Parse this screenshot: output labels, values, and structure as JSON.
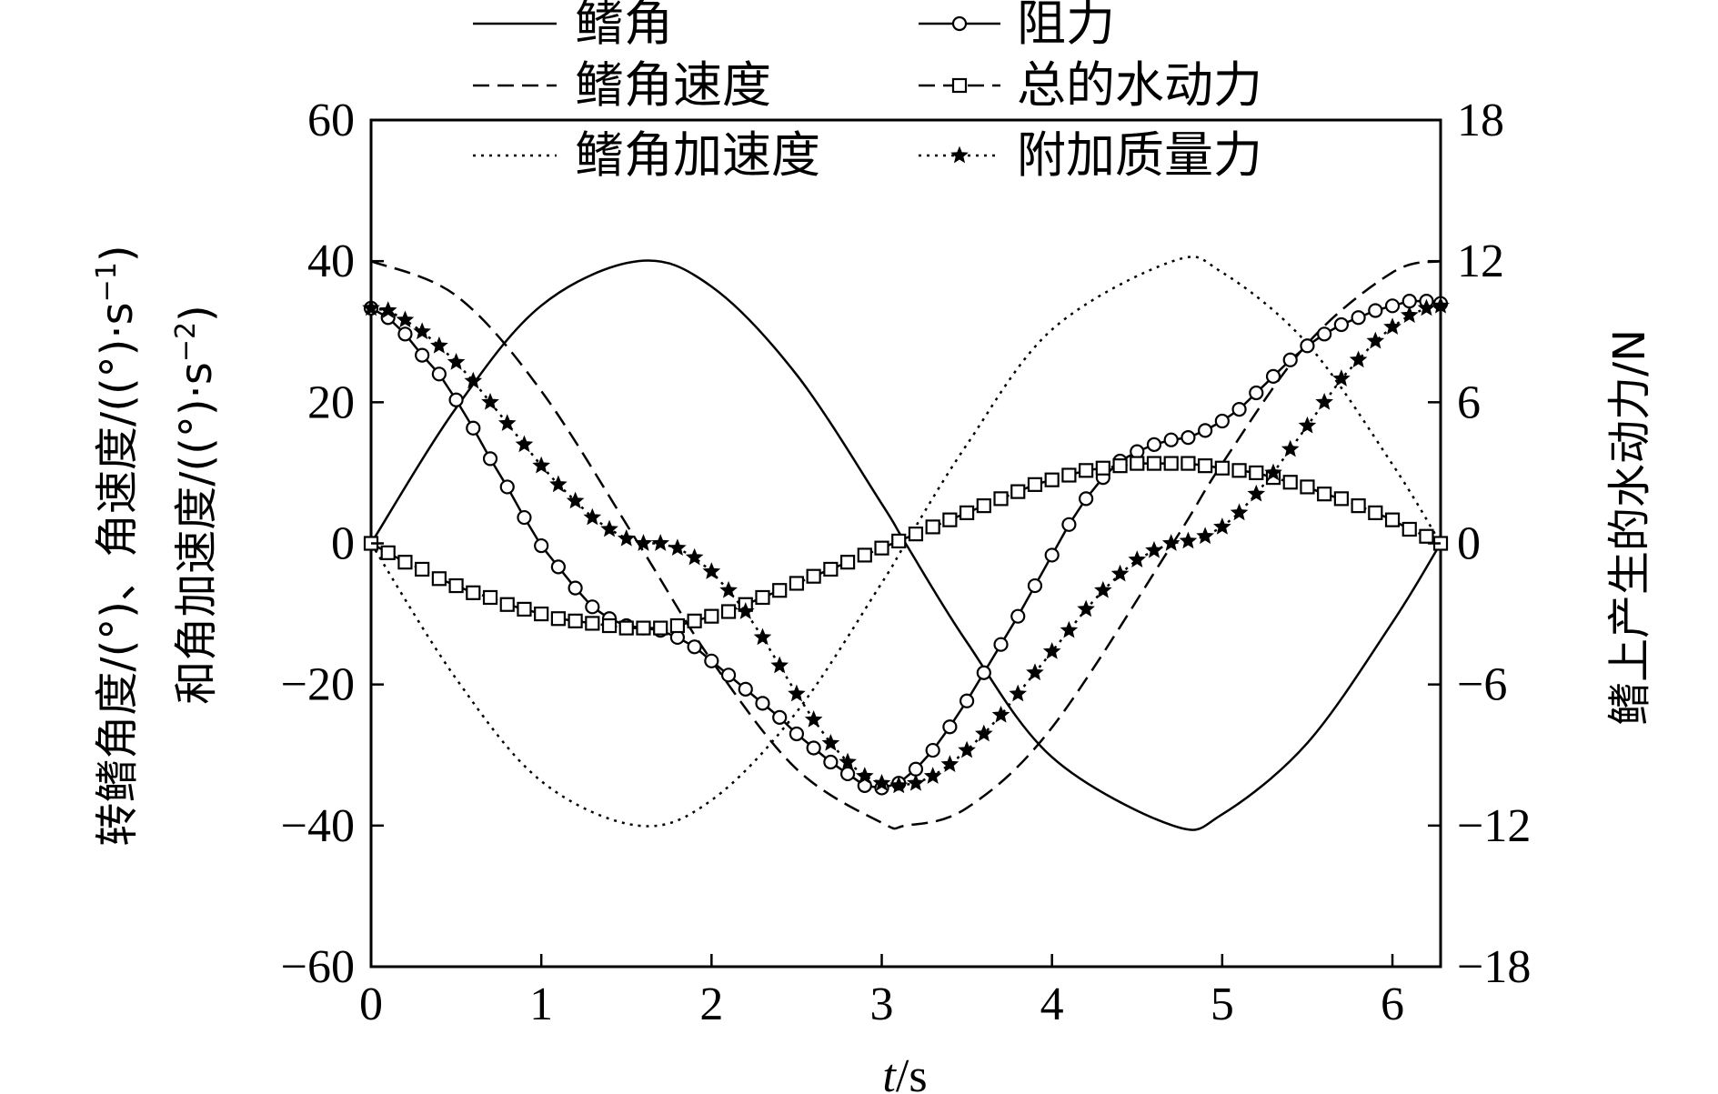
{
  "chart_data": {
    "type": "line",
    "x_label_italic": "t",
    "x_label_unit": "/s",
    "y_left_label_line1": "转鳍角度/(°)、角速度/((°)·s",
    "y_left_label_line1_sup": "−1",
    "y_left_label_line1_tail": ")",
    "y_left_label_line2": "和角加速度/((°)·s",
    "y_left_label_line2_sup": "−2",
    "y_left_label_line2_tail": ")",
    "y_right_label": "鳍上产生的水动力/N",
    "xlim": [
      0,
      6.283
    ],
    "ylim_left": [
      -60,
      60
    ],
    "ylim_right": [
      -18,
      18
    ],
    "x_ticks": [
      0,
      1,
      2,
      3,
      4,
      5,
      6
    ],
    "x_tick_labels": [
      "0",
      "1",
      "2",
      "3",
      "4",
      "5",
      "6"
    ],
    "y_left_ticks": [
      -60,
      -40,
      -20,
      0,
      20,
      40,
      60
    ],
    "y_left_tick_labels": [
      "−60",
      "−40",
      "−20",
      "0",
      "20",
      "40",
      "60"
    ],
    "y_right_ticks": [
      -18,
      -12,
      -6,
      0,
      6,
      12,
      18
    ],
    "y_right_tick_labels": [
      "−18",
      "−12",
      "−6",
      "0",
      "6",
      "12",
      "18"
    ],
    "grid": false,
    "legend_position": "top",
    "series": [
      {
        "name": "鳍角",
        "axis": "left",
        "style": "solid",
        "marker": "none",
        "x": [
          0,
          0.5,
          1.0,
          1.57,
          2.0,
          2.5,
          3.0,
          3.14,
          3.5,
          4.0,
          4.71,
          5.0,
          5.5,
          6.0,
          6.283
        ],
        "y": [
          0,
          19.2,
          33.7,
          40,
          36.4,
          23.9,
          5.6,
          0,
          -14.0,
          -30.3,
          -40,
          -38.4,
          -28.3,
          -11.2,
          0
        ]
      },
      {
        "name": "鳍角速度",
        "axis": "left",
        "style": "dashed",
        "marker": "none",
        "x": [
          0,
          0.5,
          1.0,
          1.57,
          2.0,
          2.5,
          3.0,
          3.14,
          3.5,
          4.0,
          4.71,
          5.0,
          5.5,
          6.0,
          6.283
        ],
        "y": [
          40,
          35.1,
          21.6,
          0,
          -16.6,
          -32.0,
          -39.6,
          -40,
          -37.5,
          -26.1,
          0,
          11.3,
          28.3,
          38.4,
          40
        ]
      },
      {
        "name": "鳍角加速度",
        "axis": "left",
        "style": "dotted",
        "marker": "none",
        "x": [
          0,
          0.5,
          1.0,
          1.57,
          2.0,
          2.5,
          3.0,
          3.14,
          3.5,
          4.0,
          4.71,
          5.0,
          5.5,
          6.0,
          6.283
        ],
        "y": [
          0,
          -19.2,
          -33.7,
          -40,
          -36.4,
          -23.9,
          -5.6,
          0,
          14.0,
          30.3,
          40,
          38.4,
          28.3,
          11.2,
          0
        ]
      },
      {
        "name": "阻力",
        "axis": "right",
        "style": "solid",
        "marker": "circle",
        "x": [
          0,
          0.1,
          0.2,
          0.3,
          0.4,
          0.5,
          0.6,
          0.7,
          0.8,
          0.9,
          1.0,
          1.1,
          1.2,
          1.3,
          1.4,
          1.5,
          1.6,
          1.7,
          1.8,
          1.9,
          2.0,
          2.1,
          2.2,
          2.3,
          2.4,
          2.5,
          2.6,
          2.7,
          2.8,
          2.9,
          3.0,
          3.1,
          3.2,
          3.3,
          3.4,
          3.5,
          3.6,
          3.7,
          3.8,
          3.9,
          4.0,
          4.1,
          4.2,
          4.3,
          4.4,
          4.5,
          4.6,
          4.7,
          4.8,
          4.9,
          5.0,
          5.1,
          5.2,
          5.3,
          5.4,
          5.5,
          5.6,
          5.7,
          5.8,
          5.9,
          6.0,
          6.1,
          6.2,
          6.283
        ],
        "y": [
          10.0,
          9.6,
          8.9,
          8.0,
          7.2,
          6.1,
          4.9,
          3.6,
          2.4,
          1.1,
          -0.1,
          -1.0,
          -1.9,
          -2.7,
          -3.2,
          -3.5,
          -3.6,
          -3.7,
          -4.0,
          -4.4,
          -5.0,
          -5.6,
          -6.2,
          -6.8,
          -7.4,
          -8.1,
          -8.7,
          -9.3,
          -9.8,
          -10.3,
          -10.4,
          -10.2,
          -9.6,
          -8.8,
          -7.8,
          -6.7,
          -5.5,
          -4.3,
          -3.1,
          -1.8,
          -0.5,
          0.8,
          1.9,
          2.8,
          3.5,
          3.9,
          4.2,
          4.4,
          4.5,
          4.8,
          5.2,
          5.7,
          6.4,
          7.1,
          7.8,
          8.4,
          8.9,
          9.3,
          9.6,
          9.9,
          10.1,
          10.3,
          10.3,
          10.2
        ]
      },
      {
        "name": "总的水动力",
        "axis": "right",
        "style": "dashed",
        "marker": "square",
        "x": [
          0,
          0.1,
          0.2,
          0.3,
          0.4,
          0.5,
          0.6,
          0.7,
          0.8,
          0.9,
          1.0,
          1.1,
          1.2,
          1.3,
          1.4,
          1.5,
          1.6,
          1.7,
          1.8,
          1.9,
          2.0,
          2.1,
          2.2,
          2.3,
          2.4,
          2.5,
          2.6,
          2.7,
          2.8,
          2.9,
          3.0,
          3.1,
          3.2,
          3.3,
          3.4,
          3.5,
          3.6,
          3.7,
          3.8,
          3.9,
          4.0,
          4.1,
          4.2,
          4.3,
          4.4,
          4.5,
          4.6,
          4.7,
          4.8,
          4.9,
          5.0,
          5.1,
          5.2,
          5.3,
          5.4,
          5.5,
          5.6,
          5.7,
          5.8,
          5.9,
          6.0,
          6.1,
          6.2,
          6.283
        ],
        "y": [
          0,
          -0.4,
          -0.8,
          -1.1,
          -1.5,
          -1.8,
          -2.1,
          -2.3,
          -2.6,
          -2.8,
          -3.0,
          -3.2,
          -3.3,
          -3.4,
          -3.5,
          -3.6,
          -3.6,
          -3.6,
          -3.5,
          -3.3,
          -3.1,
          -2.9,
          -2.6,
          -2.3,
          -2.0,
          -1.7,
          -1.4,
          -1.1,
          -0.8,
          -0.5,
          -0.2,
          0.1,
          0.4,
          0.7,
          1.0,
          1.3,
          1.6,
          1.9,
          2.2,
          2.5,
          2.7,
          2.9,
          3.1,
          3.2,
          3.3,
          3.4,
          3.4,
          3.4,
          3.4,
          3.3,
          3.2,
          3.1,
          3.0,
          2.8,
          2.6,
          2.4,
          2.1,
          1.9,
          1.6,
          1.3,
          1.0,
          0.6,
          0.3,
          0.0
        ]
      },
      {
        "name": "附加质量力",
        "axis": "right",
        "style": "dotted",
        "marker": "star",
        "x": [
          0,
          0.1,
          0.2,
          0.3,
          0.4,
          0.5,
          0.6,
          0.7,
          0.8,
          0.9,
          1.0,
          1.1,
          1.2,
          1.3,
          1.4,
          1.5,
          1.6,
          1.7,
          1.8,
          1.9,
          2.0,
          2.1,
          2.2,
          2.3,
          2.4,
          2.5,
          2.6,
          2.7,
          2.8,
          2.9,
          3.0,
          3.1,
          3.2,
          3.3,
          3.4,
          3.5,
          3.6,
          3.7,
          3.8,
          3.9,
          4.0,
          4.1,
          4.2,
          4.3,
          4.4,
          4.5,
          4.6,
          4.7,
          4.8,
          4.9,
          5.0,
          5.1,
          5.2,
          5.3,
          5.4,
          5.5,
          5.6,
          5.7,
          5.8,
          5.9,
          6.0,
          6.1,
          6.2,
          6.283
        ],
        "y": [
          10.0,
          9.9,
          9.5,
          9.0,
          8.4,
          7.7,
          6.9,
          6.0,
          5.1,
          4.2,
          3.3,
          2.5,
          1.8,
          1.1,
          0.6,
          0.2,
          0.0,
          0.0,
          -0.2,
          -0.6,
          -1.2,
          -2.0,
          -2.9,
          -4.0,
          -5.2,
          -6.4,
          -7.5,
          -8.5,
          -9.3,
          -9.9,
          -10.2,
          -10.3,
          -10.2,
          -9.9,
          -9.4,
          -8.8,
          -8.1,
          -7.3,
          -6.4,
          -5.5,
          -4.6,
          -3.7,
          -2.8,
          -2.0,
          -1.3,
          -0.7,
          -0.3,
          0.0,
          0.1,
          0.3,
          0.7,
          1.3,
          2.1,
          3.0,
          4.0,
          5.0,
          6.0,
          7.0,
          7.8,
          8.6,
          9.2,
          9.7,
          10.0,
          10.1
        ]
      }
    ]
  }
}
